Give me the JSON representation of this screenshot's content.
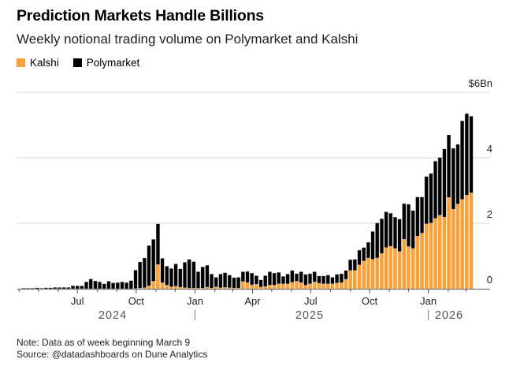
{
  "header": {
    "title": "Prediction Markets Handle Billions",
    "subtitle": "Weekly notional trading volume on Polymarket and Kalshi"
  },
  "legend": [
    {
      "label": "Kalshi",
      "color": "#f9a13a"
    },
    {
      "label": "Polymarket",
      "color": "#000000"
    }
  ],
  "footer": {
    "note": "Note: Data as of week beginning March 9",
    "source": "Source: @datadashboards on Dune Analytics"
  },
  "chart_data": {
    "type": "bar",
    "stacked": true,
    "title": "Prediction Markets Handle Billions",
    "subtitle": "Weekly notional trading volume on Polymarket and Kalshi",
    "ylim": [
      0,
      6
    ],
    "y_ticks": [
      {
        "value": 6,
        "label": "$6Bn"
      },
      {
        "value": 4,
        "label": "4"
      },
      {
        "value": 2,
        "label": "2"
      },
      {
        "value": 0,
        "label": "0"
      }
    ],
    "y_axis_position": "right",
    "grid": true,
    "legend_position": "top-left",
    "x_month_labels": [
      {
        "date": "2024-07-01",
        "label": "Jul"
      },
      {
        "date": "2024-10-01",
        "label": "Oct"
      },
      {
        "date": "2025-01-01",
        "label": "Jan"
      },
      {
        "date": "2025-04-01",
        "label": "Apr"
      },
      {
        "date": "2025-07-01",
        "label": "Jul"
      },
      {
        "date": "2025-10-01",
        "label": "Oct"
      },
      {
        "date": "2026-01-01",
        "label": "Jan"
      }
    ],
    "x_year_labels": [
      {
        "year": "2024"
      },
      {
        "year": "2025"
      },
      {
        "year": "2026"
      }
    ],
    "x": [
      "2024-04-08",
      "2024-04-15",
      "2024-04-22",
      "2024-04-29",
      "2024-05-06",
      "2024-05-13",
      "2024-05-20",
      "2024-05-27",
      "2024-06-03",
      "2024-06-10",
      "2024-06-17",
      "2024-06-24",
      "2024-07-01",
      "2024-07-08",
      "2024-07-15",
      "2024-07-22",
      "2024-07-29",
      "2024-08-05",
      "2024-08-12",
      "2024-08-19",
      "2024-08-26",
      "2024-09-02",
      "2024-09-09",
      "2024-09-16",
      "2024-09-23",
      "2024-09-30",
      "2024-10-07",
      "2024-10-14",
      "2024-10-21",
      "2024-10-28",
      "2024-11-04",
      "2024-11-11",
      "2024-11-18",
      "2024-11-25",
      "2024-12-02",
      "2024-12-09",
      "2024-12-16",
      "2024-12-23",
      "2024-12-30",
      "2025-01-06",
      "2025-01-13",
      "2025-01-20",
      "2025-01-27",
      "2025-02-03",
      "2025-02-10",
      "2025-02-17",
      "2025-02-24",
      "2025-03-03",
      "2025-03-10",
      "2025-03-17",
      "2025-03-24",
      "2025-03-31",
      "2025-04-07",
      "2025-04-14",
      "2025-04-21",
      "2025-04-28",
      "2025-05-05",
      "2025-05-12",
      "2025-05-19",
      "2025-05-26",
      "2025-06-02",
      "2025-06-09",
      "2025-06-16",
      "2025-06-23",
      "2025-06-30",
      "2025-07-07",
      "2025-07-14",
      "2025-07-21",
      "2025-07-28",
      "2025-08-04",
      "2025-08-11",
      "2025-08-18",
      "2025-08-25",
      "2025-09-01",
      "2025-09-08",
      "2025-09-15",
      "2025-09-22",
      "2025-09-29",
      "2025-10-06",
      "2025-10-13",
      "2025-10-20",
      "2025-10-27",
      "2025-11-03",
      "2025-11-10",
      "2025-11-17",
      "2025-11-24",
      "2025-12-01",
      "2025-12-08",
      "2025-12-15",
      "2025-12-22",
      "2025-12-29",
      "2026-01-05",
      "2026-01-12",
      "2026-01-19",
      "2026-01-26",
      "2026-02-02",
      "2026-02-09",
      "2026-02-16",
      "2026-02-23",
      "2026-03-02",
      "2026-03-09"
    ],
    "series": [
      {
        "name": "Kalshi",
        "color": "#f9a13a",
        "values": [
          0,
          0,
          0,
          0,
          0,
          0,
          0,
          0,
          0,
          0,
          0,
          0,
          0,
          0,
          0,
          0,
          0,
          0,
          0,
          0,
          0,
          0,
          0,
          0,
          0,
          0.01,
          0.02,
          0.03,
          0.09,
          0.23,
          0.74,
          0.19,
          0.11,
          0.06,
          0.08,
          0.05,
          0.03,
          0.02,
          0.02,
          0.02,
          0.02,
          0.05,
          0.02,
          0.06,
          0.03,
          0.04,
          0.03,
          0.02,
          0.02,
          0.22,
          0.19,
          0.12,
          0.14,
          0.05,
          0.07,
          0.11,
          0.11,
          0.15,
          0.15,
          0.15,
          0.2,
          0.23,
          0.19,
          0.11,
          0.15,
          0.21,
          0.17,
          0.15,
          0.15,
          0.15,
          0.18,
          0.19,
          0.29,
          0.56,
          0.56,
          0.73,
          0.85,
          0.94,
          0.9,
          0.94,
          1.08,
          1.26,
          1.3,
          1.23,
          1.14,
          1.51,
          1.29,
          1.23,
          1.61,
          1.7,
          1.98,
          2.01,
          2.15,
          2.25,
          2.19,
          2.79,
          2.43,
          2.59,
          2.73,
          2.86,
          2.93
        ]
      },
      {
        "name": "Polymarket",
        "color": "#000000",
        "values": [
          0.02,
          0.02,
          0.02,
          0.03,
          0.02,
          0.03,
          0.03,
          0.04,
          0.04,
          0.04,
          0.04,
          0.09,
          0.09,
          0.09,
          0.21,
          0.3,
          0.24,
          0.21,
          0.15,
          0.23,
          0.18,
          0.19,
          0.21,
          0.19,
          0.25,
          0.56,
          0.8,
          0.91,
          1.23,
          1.28,
          1.24,
          0.74,
          0.58,
          0.56,
          0.68,
          0.56,
          0.78,
          0.88,
          0.81,
          0.5,
          0.65,
          0.67,
          0.43,
          0.29,
          0.42,
          0.45,
          0.39,
          0.32,
          0.33,
          0.3,
          0.34,
          0.36,
          0.26,
          0.22,
          0.33,
          0.41,
          0.37,
          0.35,
          0.23,
          0.3,
          0.36,
          0.23,
          0.33,
          0.33,
          0.31,
          0.31,
          0.22,
          0.24,
          0.27,
          0.2,
          0.26,
          0.27,
          0.27,
          0.33,
          0.34,
          0.45,
          0.41,
          0.48,
          0.85,
          1.07,
          1.06,
          1.09,
          1.01,
          0.96,
          0.99,
          1.09,
          1.29,
          1.16,
          1.19,
          1.1,
          1.45,
          1.51,
          1.75,
          1.76,
          2.08,
          1.91,
          1.86,
          1.82,
          2.4,
          2.49,
          2.34
        ]
      }
    ]
  }
}
